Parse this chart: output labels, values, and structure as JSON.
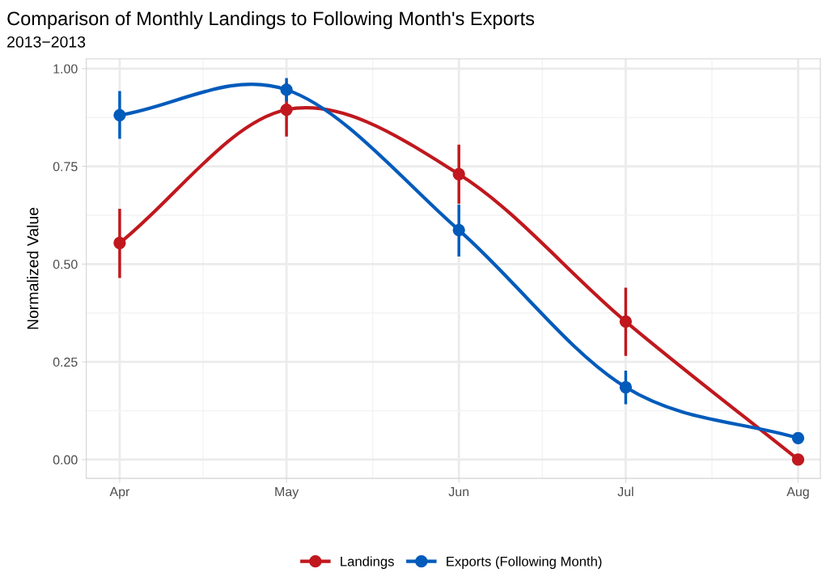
{
  "chart_data": {
    "type": "line",
    "title": "Comparison of Monthly Landings to Following Month's Exports",
    "subtitle": "2013−2013",
    "ylabel": "Normalized Value",
    "x": [
      "2013-04-01",
      "2013-05-01",
      "2013-06-01",
      "2013-07-01",
      "2013-08-01"
    ],
    "series": [
      {
        "name": "Landings",
        "color": "#c0181e",
        "values": [
          0.554,
          0.895,
          0.73,
          0.353,
          0
        ],
        "errors": [
          [
            0.468,
            0.638
          ],
          [
            0.83,
            0.96
          ],
          [
            0.658,
            0.802
          ],
          [
            0.269,
            0.436
          ],
          null
        ]
      },
      {
        "name": "Exports (Following Month)",
        "color": "#005bbb",
        "values": [
          0.881,
          0.946,
          0.587,
          0.185,
          0.055
        ],
        "errors": [
          [
            0.824,
            0.939
          ],
          [
            0.92,
            0.972
          ],
          [
            0.523,
            0.649
          ],
          [
            0.145,
            0.224
          ],
          null
        ]
      }
    ],
    "xlim": [
      "2013-03-26",
      "2013-08-05"
    ],
    "xticks": [
      {
        "value": "2013-04-01",
        "label": "Apr"
      },
      {
        "value": "2013-05-01",
        "label": "May"
      },
      {
        "value": "2013-06-01",
        "label": "Jun"
      },
      {
        "value": "2013-07-01",
        "label": "Jul"
      },
      {
        "value": "2013-08-01",
        "label": "Aug"
      }
    ],
    "ylim": [
      -0.048,
      1.025
    ],
    "yticks": [
      {
        "value": 0,
        "label": "0.00"
      },
      {
        "value": 0.25,
        "label": "0.25"
      },
      {
        "value": 0.5,
        "label": "0.50"
      },
      {
        "value": 0.75,
        "label": "0.75"
      },
      {
        "value": 1,
        "label": "1.00"
      }
    ],
    "grid": true,
    "legend": "bottom",
    "marker": "circle",
    "line_style": "solid"
  }
}
